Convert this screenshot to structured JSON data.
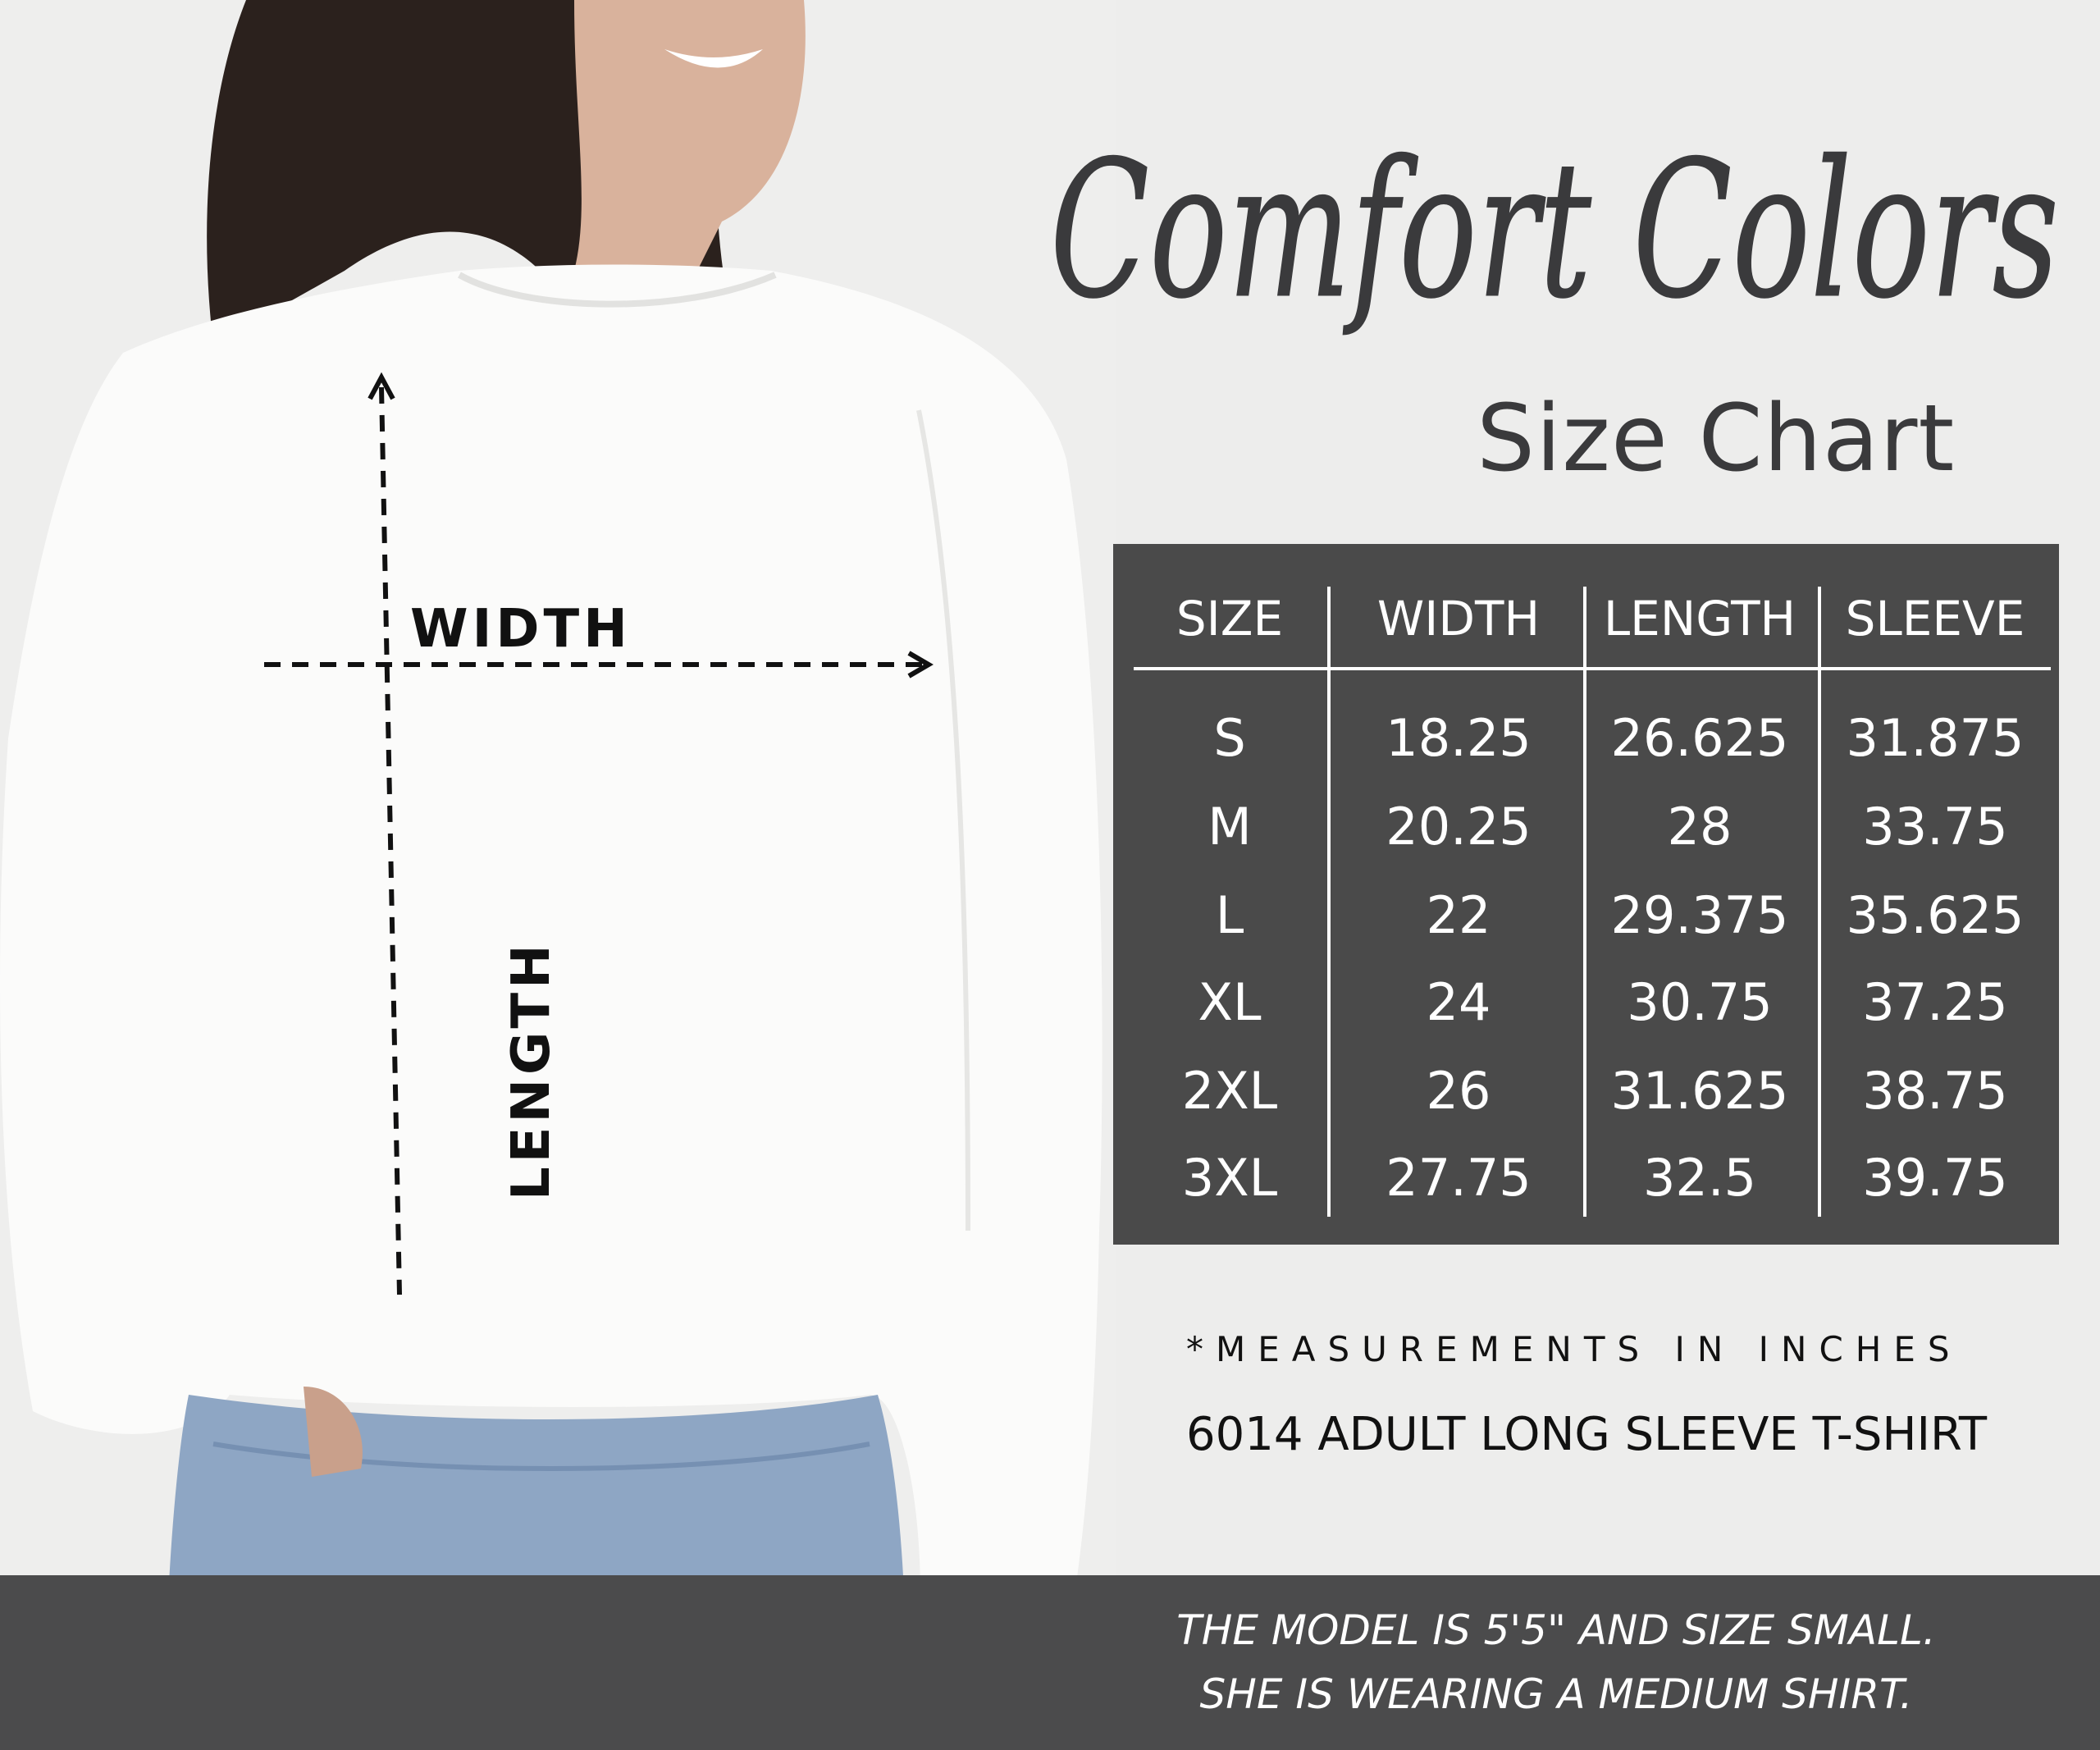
{
  "header": {
    "brand_script": "Comfort Colors",
    "subtitle": "Size Chart"
  },
  "diagram": {
    "width_label": "WIDTH",
    "length_label": "LENGTH"
  },
  "size_table": {
    "columns": [
      "SIZE",
      "WIDTH",
      "LENGTH",
      "SLEEVE"
    ],
    "rows": [
      [
        "S",
        "18.25",
        "26.625",
        "31.875"
      ],
      [
        "M",
        "20.25",
        "28",
        "33.75"
      ],
      [
        "L",
        "22",
        "29.375",
        "35.625"
      ],
      [
        "XL",
        "24",
        "30.75",
        "37.25"
      ],
      [
        "2XL",
        "26",
        "31.625",
        "38.75"
      ],
      [
        "3XL",
        "27.75",
        "32.5",
        "39.75"
      ]
    ]
  },
  "notes": {
    "units": "*MEASUREMENTS IN INCHES",
    "product": "6014 ADULT LONG SLEEVE T-SHIRT"
  },
  "footer": {
    "line1": "THE MODEL IS 5'5\" AND SIZE SMALL.",
    "line2": "SHE IS WEARING A MEDIUM SHIRT."
  },
  "colors": {
    "background": "#ededec",
    "table_bg": "#4a4a4a",
    "footer_bg": "#4b4b4c",
    "text_dark": "#3a3a3c"
  }
}
